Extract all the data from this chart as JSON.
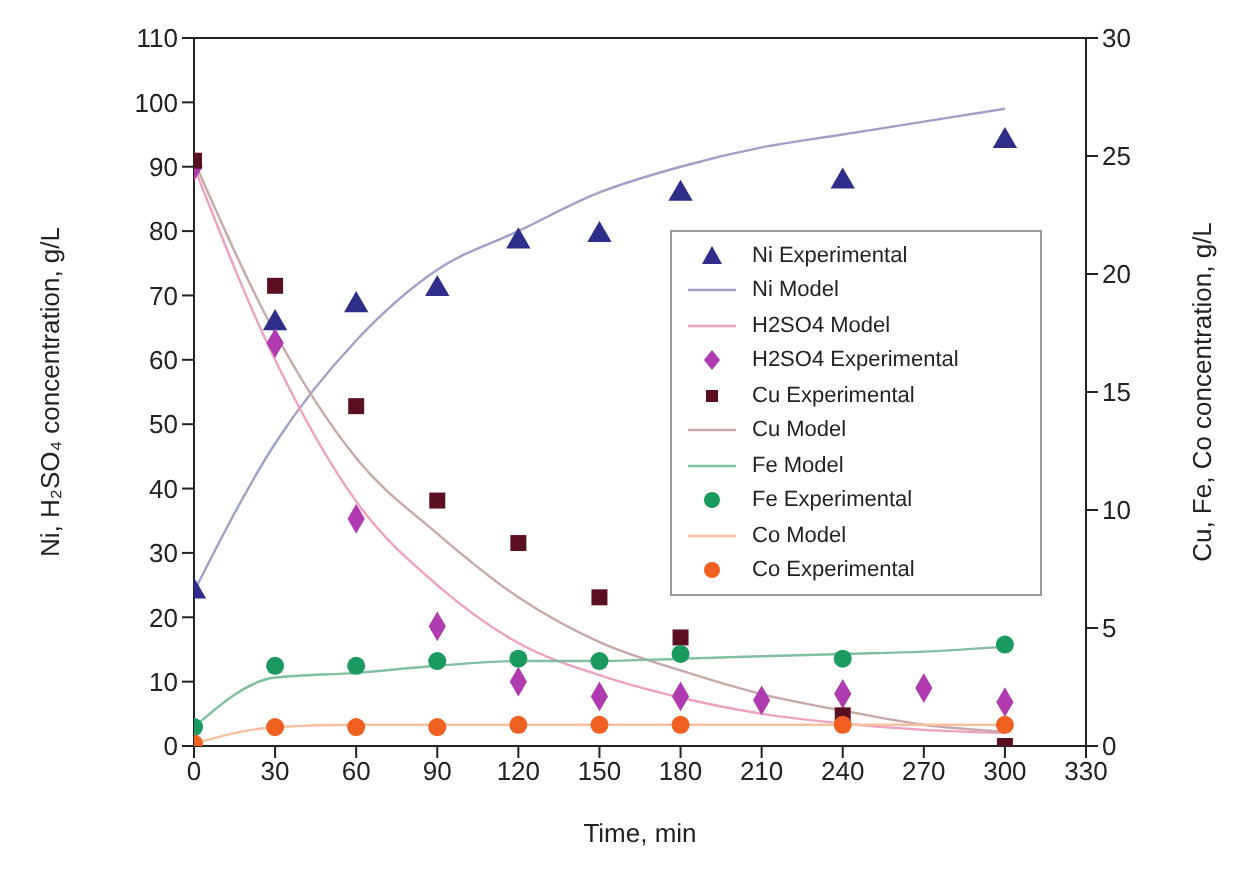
{
  "chart_data": {
    "type": "scatter",
    "xlabel": "Time, min",
    "ylabel": "Ni, H₂SO₄ concentration, g/L",
    "y2label": "Cu, Fe, Co concentration, g/L",
    "xlim": [
      0,
      330
    ],
    "xticks": [
      0,
      30,
      60,
      90,
      120,
      150,
      180,
      210,
      240,
      270,
      300,
      330
    ],
    "ylim": [
      0,
      110
    ],
    "yticks": [
      0,
      10,
      20,
      30,
      40,
      50,
      60,
      70,
      80,
      90,
      100,
      110
    ],
    "y2lim": [
      0,
      30
    ],
    "y2ticks": [
      0,
      5,
      10,
      15,
      20,
      25,
      30
    ],
    "legend": "right",
    "grid": false,
    "series": [
      {
        "name": "Ni Experimental",
        "marker": "triangle",
        "axis": "y",
        "color": "#2e2e8a",
        "x": [
          0,
          30,
          60,
          90,
          120,
          150,
          180,
          240,
          300
        ],
        "values": [
          24,
          65.7,
          68.5,
          71,
          78.4,
          79.4,
          85.8,
          87.7,
          94
        ]
      },
      {
        "name": "Ni Model",
        "type": "line",
        "marker": "none",
        "axis": "y",
        "color": "#a0a0c8",
        "x": [
          0,
          30,
          60,
          90,
          120,
          150,
          180,
          210,
          240,
          270,
          300
        ],
        "values": [
          24,
          47,
          63,
          74,
          80,
          86,
          90,
          93,
          95,
          97,
          99
        ]
      },
      {
        "name": "H2SO4 Model",
        "type": "line",
        "marker": "none",
        "axis": "y",
        "color": "#f0a0c0",
        "x": [
          0,
          30,
          60,
          90,
          120,
          150,
          180,
          210,
          240,
          270,
          300
        ],
        "values": [
          90,
          60,
          38,
          25,
          16,
          11,
          7.5,
          5,
          3.5,
          2.5,
          2
        ]
      },
      {
        "name": "H2SO4 Experimental",
        "marker": "diamond",
        "axis": "y",
        "color": "#b03ab0",
        "x": [
          0,
          30,
          60,
          90,
          120,
          150,
          180,
          210,
          240,
          270,
          300
        ],
        "values": [
          90,
          62.6,
          35.3,
          18.6,
          10,
          7.7,
          7.7,
          7.1,
          8.1,
          9,
          6.8
        ]
      },
      {
        "name": "Cu Experimental",
        "marker": "square",
        "axis": "y2",
        "color": "#5a1020",
        "x": [
          0,
          30,
          60,
          90,
          120,
          150,
          180,
          240,
          300
        ],
        "values": [
          24.8,
          19.5,
          14.4,
          10.4,
          8.6,
          6.3,
          4.6,
          1.3,
          0
        ]
      },
      {
        "name": "Cu Model",
        "type": "line",
        "marker": "none",
        "axis": "y2",
        "color": "#c8a8a8",
        "x": [
          0,
          30,
          60,
          90,
          120,
          150,
          180,
          210,
          240,
          270,
          300
        ],
        "values": [
          24.8,
          17.5,
          12.2,
          9,
          6.3,
          4.4,
          3.2,
          2.2,
          1.5,
          0.9,
          0.6
        ]
      },
      {
        "name": "Fe Model",
        "type": "line",
        "marker": "none",
        "axis": "y2",
        "color": "#80c0a0",
        "x": [
          0,
          30,
          60,
          90,
          120,
          150,
          180,
          210,
          240,
          270,
          300
        ],
        "values": [
          0.8,
          2.9,
          3.1,
          3.4,
          3.6,
          3.6,
          3.7,
          3.8,
          3.9,
          4,
          4.2
        ]
      },
      {
        "name": "Fe Experimental",
        "marker": "circle",
        "axis": "y2",
        "color": "#1a9a60",
        "x": [
          0,
          30,
          60,
          90,
          120,
          150,
          180,
          240,
          300
        ],
        "values": [
          0.8,
          3.4,
          3.4,
          3.6,
          3.7,
          3.6,
          3.9,
          3.7,
          4.3
        ]
      },
      {
        "name": "Co Model",
        "type": "line",
        "marker": "none",
        "axis": "y2",
        "color": "#f8c0a0",
        "x": [
          0,
          30,
          60,
          90,
          120,
          150,
          180,
          210,
          240,
          270,
          300
        ],
        "values": [
          0.1,
          0.8,
          0.9,
          0.9,
          0.9,
          0.9,
          0.9,
          0.9,
          0.9,
          0.9,
          0.9
        ]
      },
      {
        "name": "Co Experimental",
        "marker": "circle",
        "axis": "y2",
        "color": "#f06020",
        "x": [
          0,
          30,
          60,
          90,
          120,
          150,
          180,
          240,
          300
        ],
        "values": [
          0.1,
          0.8,
          0.8,
          0.8,
          0.9,
          0.9,
          0.9,
          0.9,
          0.9
        ]
      }
    ]
  }
}
